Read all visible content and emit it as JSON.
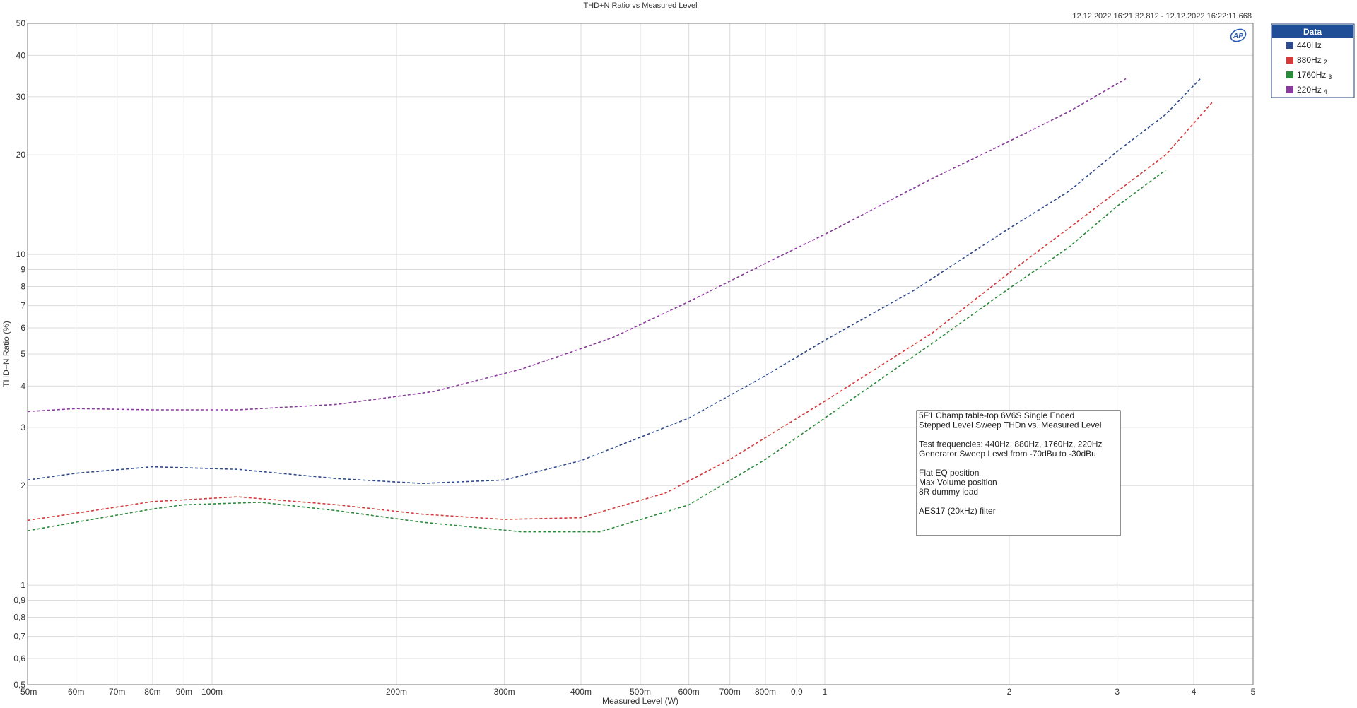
{
  "chart_data": {
    "type": "line",
    "title": "THD+N Ratio vs Measured Level",
    "timestamp": "12.12.2022 16:21:32.812 - 12.12.2022 16:22:11.668",
    "xlabel": "Measured Level (W)",
    "ylabel": "THD+N Ratio (%)",
    "x_scale": "log",
    "y_scale": "log",
    "xlim": [
      0.05,
      5
    ],
    "ylim": [
      0.5,
      50
    ],
    "grid": true,
    "x_ticks": [
      {
        "value": 0.05,
        "label": "50m"
      },
      {
        "value": 0.06,
        "label": "60m"
      },
      {
        "value": 0.07,
        "label": "70m"
      },
      {
        "value": 0.08,
        "label": "80m"
      },
      {
        "value": 0.09,
        "label": "90m"
      },
      {
        "value": 0.1,
        "label": "100m"
      },
      {
        "value": 0.2,
        "label": "200m"
      },
      {
        "value": 0.3,
        "label": "300m"
      },
      {
        "value": 0.4,
        "label": "400m"
      },
      {
        "value": 0.5,
        "label": "500m"
      },
      {
        "value": 0.6,
        "label": "600m"
      },
      {
        "value": 0.7,
        "label": "700m"
      },
      {
        "value": 0.8,
        "label": "800m"
      },
      {
        "value": 0.9,
        "label": "0,9"
      },
      {
        "value": 1,
        "label": "1"
      },
      {
        "value": 2,
        "label": "2"
      },
      {
        "value": 3,
        "label": "3"
      },
      {
        "value": 4,
        "label": "4"
      },
      {
        "value": 5,
        "label": "5"
      }
    ],
    "y_ticks": [
      {
        "value": 0.5,
        "label": "0,5"
      },
      {
        "value": 0.6,
        "label": "0,6"
      },
      {
        "value": 0.7,
        "label": "0,7"
      },
      {
        "value": 0.8,
        "label": "0,8"
      },
      {
        "value": 0.9,
        "label": "0,9"
      },
      {
        "value": 1,
        "label": "1"
      },
      {
        "value": 2,
        "label": "2"
      },
      {
        "value": 3,
        "label": "3"
      },
      {
        "value": 4,
        "label": "4"
      },
      {
        "value": 5,
        "label": "5"
      },
      {
        "value": 6,
        "label": "6"
      },
      {
        "value": 7,
        "label": "7"
      },
      {
        "value": 8,
        "label": "8"
      },
      {
        "value": 9,
        "label": "9"
      },
      {
        "value": 10,
        "label": "10"
      },
      {
        "value": 20,
        "label": "20"
      },
      {
        "value": 30,
        "label": "30"
      },
      {
        "value": 40,
        "label": "40"
      },
      {
        "value": 50,
        "label": "50"
      }
    ],
    "legend": {
      "title": "Data",
      "placement": "right-top",
      "entries": [
        {
          "label": "440Hz",
          "suffix": ""
        },
        {
          "label": "880Hz",
          "suffix": "2"
        },
        {
          "label": "1760Hz",
          "suffix": "3"
        },
        {
          "label": "220Hz",
          "suffix": "4"
        }
      ]
    },
    "series": [
      {
        "name": "440Hz",
        "color": "#2e4a8c",
        "points": [
          [
            0.05,
            2.08
          ],
          [
            0.06,
            2.18
          ],
          [
            0.08,
            2.28
          ],
          [
            0.11,
            2.24
          ],
          [
            0.16,
            2.1
          ],
          [
            0.22,
            2.03
          ],
          [
            0.3,
            2.08
          ],
          [
            0.4,
            2.38
          ],
          [
            0.5,
            2.8
          ],
          [
            0.6,
            3.2
          ],
          [
            0.8,
            4.3
          ],
          [
            1.0,
            5.5
          ],
          [
            1.4,
            7.8
          ],
          [
            2.0,
            12.0
          ],
          [
            2.5,
            15.5
          ],
          [
            3.0,
            20.5
          ],
          [
            3.6,
            26.5
          ],
          [
            4.1,
            34.0
          ]
        ]
      },
      {
        "name": "880Hz",
        "color": "#d63b3b",
        "points": [
          [
            0.05,
            1.57
          ],
          [
            0.06,
            1.65
          ],
          [
            0.08,
            1.79
          ],
          [
            0.09,
            1.81
          ],
          [
            0.11,
            1.85
          ],
          [
            0.16,
            1.75
          ],
          [
            0.22,
            1.64
          ],
          [
            0.3,
            1.58
          ],
          [
            0.4,
            1.6
          ],
          [
            0.55,
            1.9
          ],
          [
            0.7,
            2.4
          ],
          [
            1.0,
            3.6
          ],
          [
            1.5,
            5.8
          ],
          [
            2.0,
            8.8
          ],
          [
            2.5,
            12.0
          ],
          [
            3.0,
            15.5
          ],
          [
            3.6,
            20.0
          ],
          [
            4.3,
            29.0
          ]
        ]
      },
      {
        "name": "1760Hz",
        "color": "#2a8a3a",
        "points": [
          [
            0.05,
            1.46
          ],
          [
            0.06,
            1.55
          ],
          [
            0.08,
            1.7
          ],
          [
            0.09,
            1.75
          ],
          [
            0.12,
            1.78
          ],
          [
            0.16,
            1.68
          ],
          [
            0.22,
            1.55
          ],
          [
            0.32,
            1.45
          ],
          [
            0.43,
            1.45
          ],
          [
            0.6,
            1.75
          ],
          [
            0.8,
            2.4
          ],
          [
            1.0,
            3.2
          ],
          [
            1.5,
            5.4
          ],
          [
            2.0,
            7.9
          ],
          [
            2.5,
            10.5
          ],
          [
            3.0,
            14.0
          ],
          [
            3.6,
            18.0
          ]
        ]
      },
      {
        "name": "220Hz",
        "color": "#8a3a9c",
        "points": [
          [
            0.05,
            3.35
          ],
          [
            0.06,
            3.42
          ],
          [
            0.08,
            3.39
          ],
          [
            0.11,
            3.39
          ],
          [
            0.16,
            3.52
          ],
          [
            0.23,
            3.85
          ],
          [
            0.32,
            4.5
          ],
          [
            0.45,
            5.6
          ],
          [
            0.6,
            7.2
          ],
          [
            0.8,
            9.4
          ],
          [
            1.0,
            11.5
          ],
          [
            1.5,
            17.0
          ],
          [
            2.0,
            22.0
          ],
          [
            2.5,
            27.0
          ],
          [
            3.1,
            34.0
          ]
        ]
      }
    ],
    "annotations": [
      "5F1 Champ table-top 6V6S Single Ended",
      "Stepped Level Sweep THDn vs. Measured Level",
      "",
      "Test frequencies: 440Hz, 880Hz, 1760Hz, 220Hz",
      "Generator Sweep Level from -70dBu to -30dBu",
      "",
      "Flat EQ position",
      "Max Volume position",
      "8R dummy load",
      "",
      "AES17 (20kHz) filter"
    ]
  },
  "logo": {
    "text": "AP"
  }
}
